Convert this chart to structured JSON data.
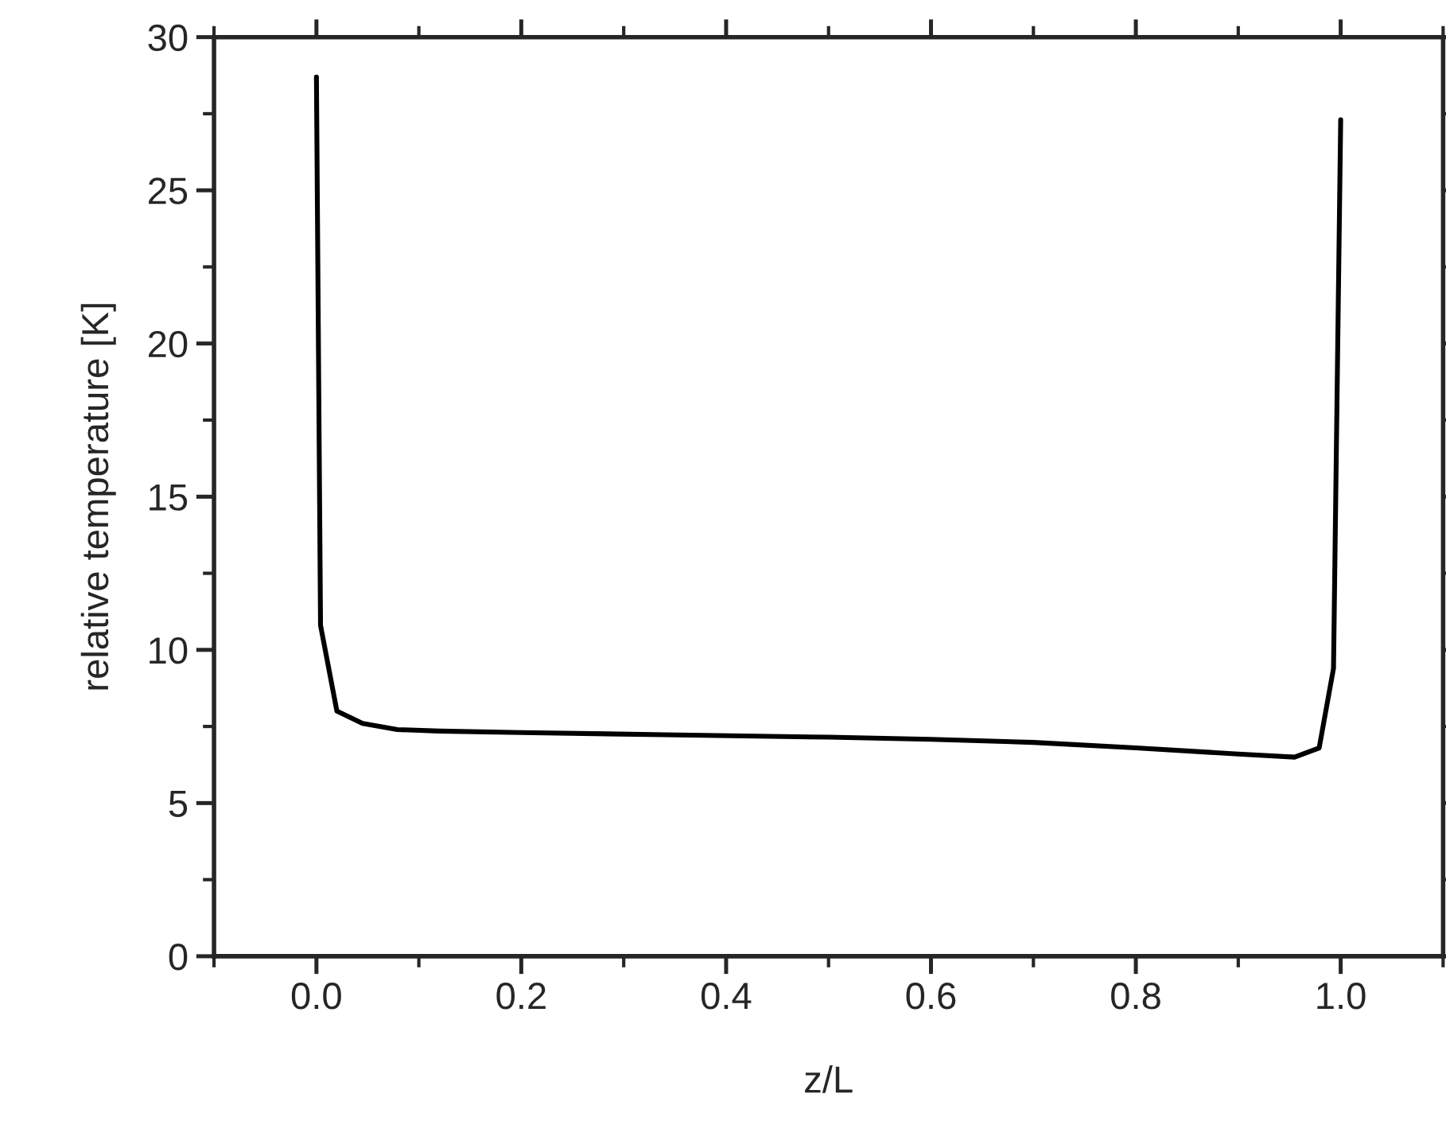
{
  "chart_data": {
    "type": "line",
    "xlabel": "z/L",
    "ylabel": "relative temperature [K]",
    "xlim": [
      -0.1,
      1.1
    ],
    "ylim": [
      0,
      30
    ],
    "xticks": [
      {
        "value": 0.0,
        "label": "0.0"
      },
      0.2,
      0.4,
      0.6,
      0.8,
      {
        "value": 1.0,
        "label": "1.0"
      }
    ],
    "yticks": [
      0,
      5,
      10,
      15,
      20,
      25,
      30
    ],
    "grid": false,
    "legend": false,
    "marker": "none",
    "line_style": "solid",
    "x": [
      0.0,
      0.004,
      0.02,
      0.045,
      0.079,
      0.12,
      0.2,
      0.34,
      0.5,
      0.6,
      0.7,
      0.8,
      0.9,
      0.955,
      0.979,
      0.993,
      1.0
    ],
    "series": [
      {
        "color": "#000000",
        "values": [
          28.7,
          10.8,
          8.0,
          7.6,
          7.4,
          7.35,
          7.3,
          7.23,
          7.15,
          7.08,
          6.98,
          6.8,
          6.6,
          6.5,
          6.8,
          9.4,
          27.3
        ]
      }
    ]
  }
}
